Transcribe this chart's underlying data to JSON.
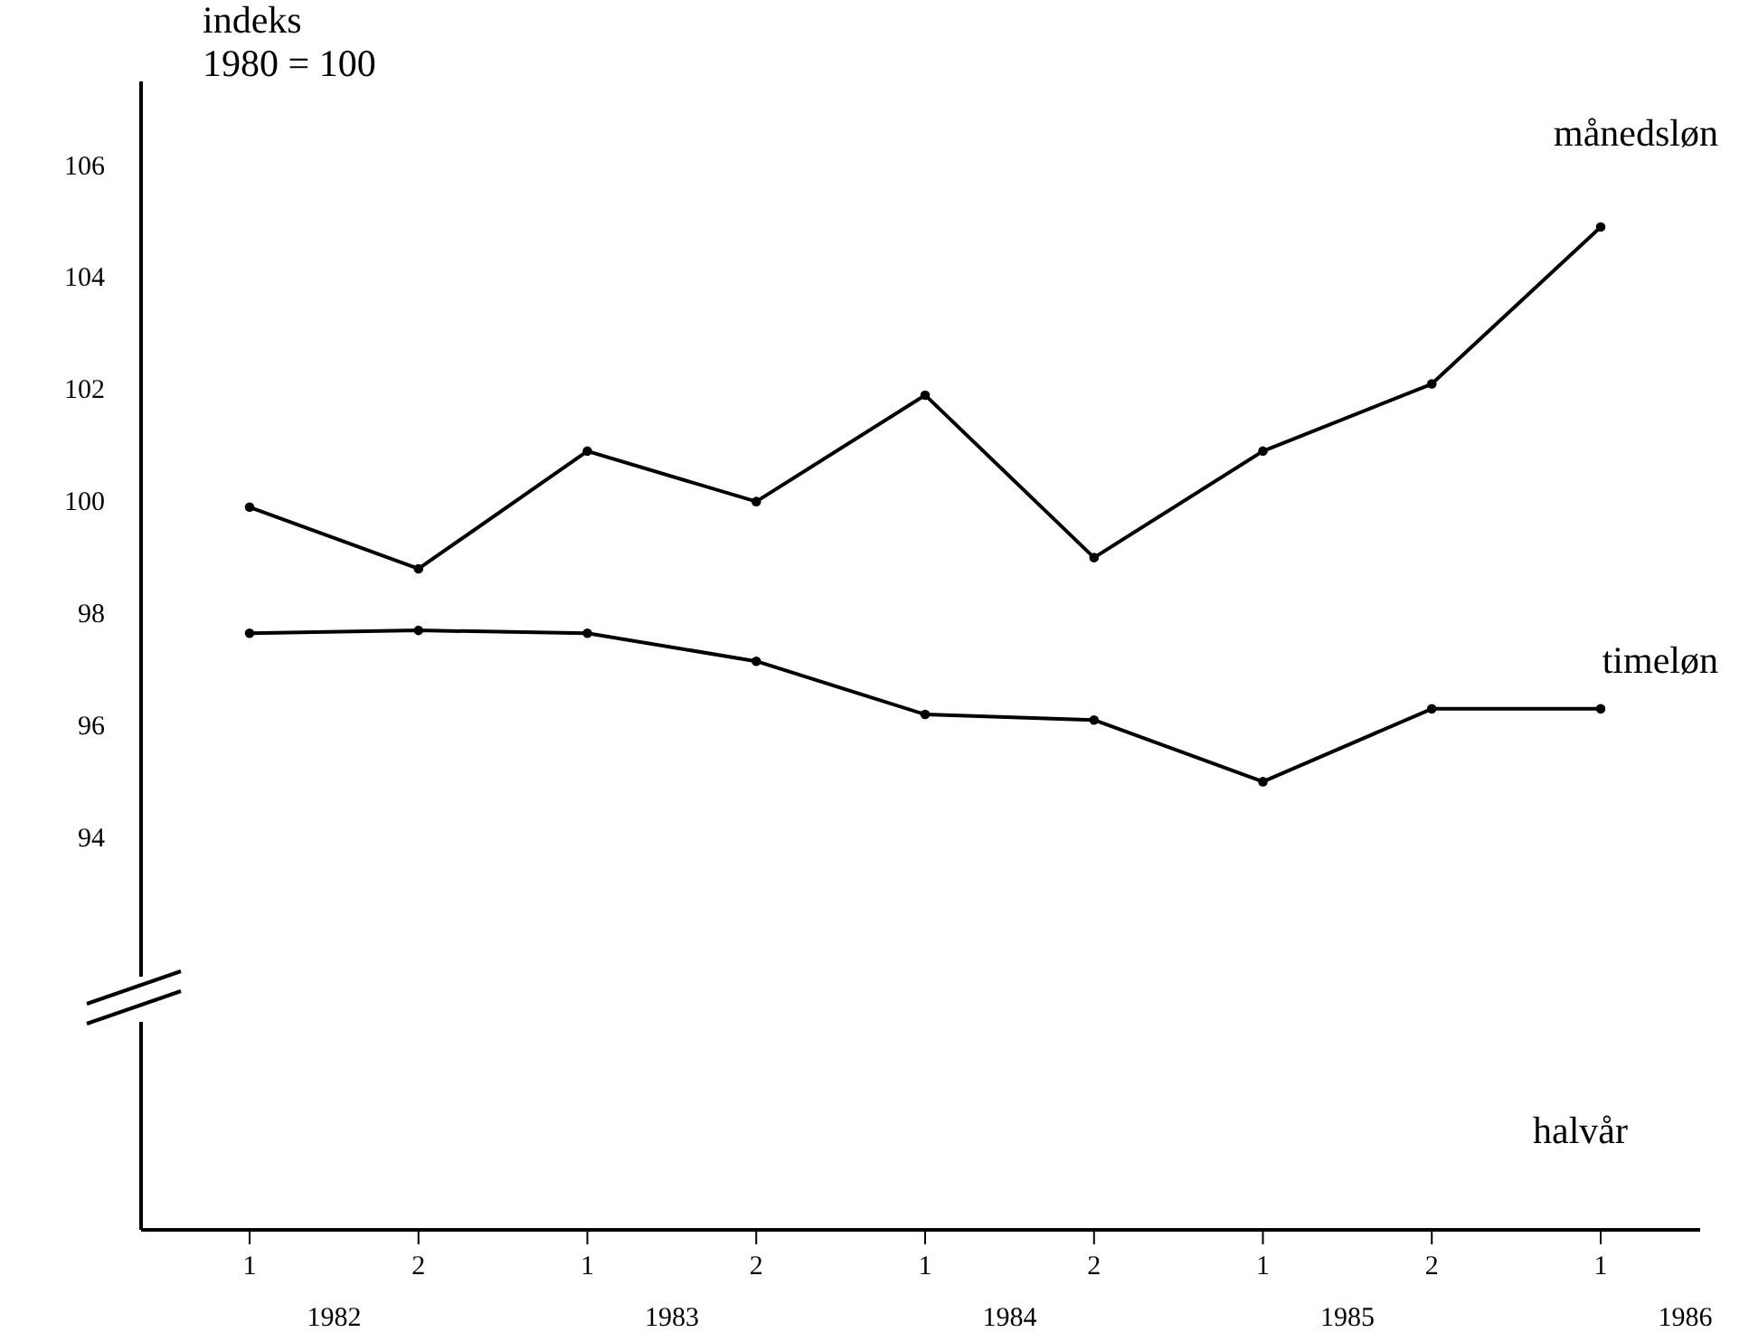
{
  "chart_data": {
    "type": "line",
    "ylabel": "indeks\n1980 = 100",
    "xlabel": "halvår",
    "categories": [
      "1",
      "2",
      "1",
      "2",
      "1",
      "2",
      "1",
      "2",
      "1"
    ],
    "series": [
      {
        "name": "månedsløn",
        "color": "#000000",
        "values": [
          99.9,
          98.8,
          100.9,
          100.0,
          101.9,
          99.0,
          100.9,
          102.1,
          104.9
        ]
      },
      {
        "name": "timeløn",
        "color": "#000000",
        "values": [
          97.65,
          97.7,
          97.65,
          97.15,
          96.2,
          96.1,
          95.0,
          96.3,
          96.3
        ]
      }
    ],
    "ylim": [
      87,
      107.5
    ],
    "yticks": [
      94,
      96,
      98,
      100,
      102,
      104,
      106
    ],
    "annotations": [
      "1982",
      "1983",
      "1984",
      "1985",
      "1986"
    ],
    "marker": "circle",
    "line_style": "solid"
  }
}
